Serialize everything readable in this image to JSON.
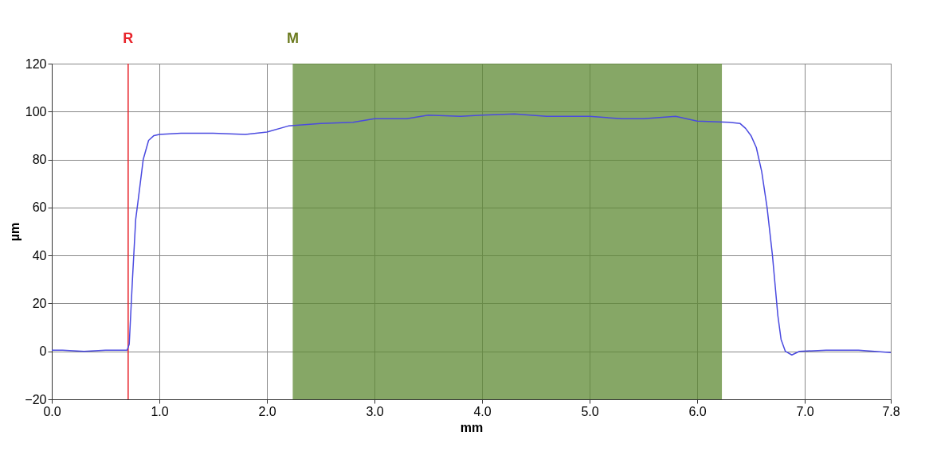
{
  "chart_data": {
    "type": "line",
    "xlabel": "mm",
    "ylabel": "µm",
    "x": [
      0.0,
      0.1,
      0.3,
      0.5,
      0.65,
      0.7,
      0.72,
      0.75,
      0.78,
      0.8,
      0.85,
      0.9,
      0.95,
      1.0,
      1.2,
      1.5,
      1.8,
      2.0,
      2.2,
      2.5,
      2.8,
      3.0,
      3.3,
      3.5,
      3.8,
      4.0,
      4.3,
      4.6,
      5.0,
      5.3,
      5.5,
      5.8,
      6.0,
      6.3,
      6.4,
      6.45,
      6.5,
      6.55,
      6.6,
      6.65,
      6.7,
      6.72,
      6.75,
      6.78,
      6.82,
      6.88,
      6.95,
      7.2,
      7.5,
      7.8
    ],
    "series": [
      {
        "color": "#4a4ae0",
        "values": [
          0.5,
          0.5,
          0,
          0.5,
          0.5,
          0.5,
          3,
          30,
          55,
          62,
          80,
          88,
          90,
          90.5,
          91,
          91,
          90.5,
          91.5,
          94,
          95,
          95.5,
          97,
          97,
          98.5,
          98,
          98.5,
          99,
          98,
          98,
          97,
          97,
          98,
          96,
          95.5,
          95,
          93,
          90,
          85,
          75,
          60,
          40,
          30,
          15,
          5,
          0,
          -1.5,
          0,
          0.5,
          0.5,
          -0.5
        ]
      }
    ],
    "xlim": [
      0,
      7.8
    ],
    "ylim": [
      -20,
      120
    ],
    "xticks": [
      {
        "value": 0,
        "label": "0.0"
      },
      {
        "value": 1,
        "label": "1.0"
      },
      {
        "value": 2,
        "label": "2.0"
      },
      {
        "value": 3,
        "label": "3.0"
      },
      {
        "value": 4,
        "label": "4.0"
      },
      {
        "value": 5,
        "label": "5.0"
      },
      {
        "value": 6,
        "label": "6.0"
      },
      {
        "value": 7,
        "label": "7.0"
      },
      {
        "value": 7.8,
        "label": "7.8"
      }
    ],
    "yticks": [
      -20,
      0,
      20,
      40,
      60,
      80,
      100,
      120
    ],
    "ref_lines": [
      {
        "axis": "x",
        "value": 0.71,
        "label": "R",
        "color": "#e8242b"
      }
    ],
    "bands": [
      {
        "axis": "x",
        "from": 2.24,
        "to": 6.23,
        "label": "M",
        "color": "#5e8a33"
      }
    ],
    "grid": true,
    "line_style": "solid",
    "marker": "none"
  }
}
